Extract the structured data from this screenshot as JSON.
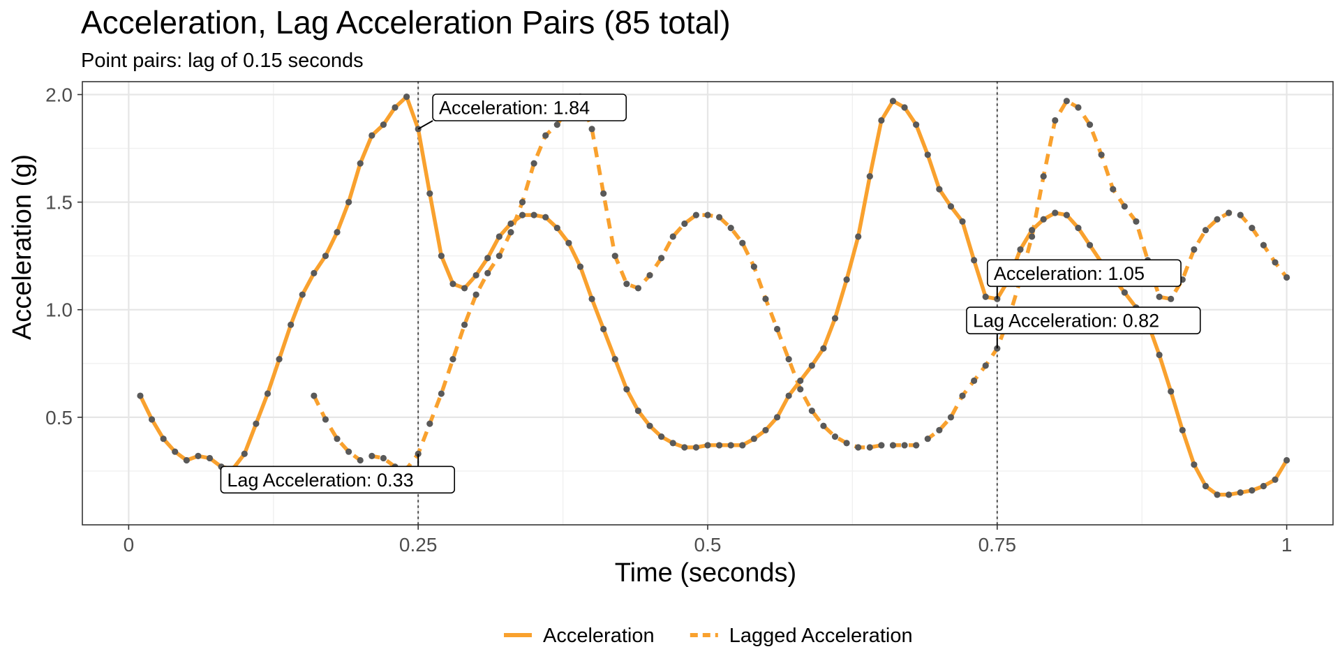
{
  "chart_data": {
    "type": "line",
    "title": "Acceleration, Lag Acceleration Pairs (85 total)",
    "subtitle": "Point pairs: lag of 0.15 seconds",
    "xlabel": "Time (seconds)",
    "ylabel": "Acceleration (g)",
    "xlim": [
      -0.04,
      1.04
    ],
    "ylim": [
      0.0,
      2.06
    ],
    "x_ticks": [
      0,
      0.25,
      0.5,
      0.75,
      1
    ],
    "x_tick_labels": [
      "0",
      "0.25",
      "0.5",
      "0.75",
      "1"
    ],
    "y_ticks": [
      0.5,
      1.0,
      1.5,
      2.0
    ],
    "y_tick_labels": [
      "0.5",
      "1.0",
      "1.5",
      "2.0"
    ],
    "grid": true,
    "legend_position": "bottom",
    "point_color": "#595959",
    "series": [
      {
        "name": "Acceleration",
        "color": "#f9a12e",
        "dash": "solid",
        "x": [
          0.01,
          0.02,
          0.03,
          0.04,
          0.05,
          0.06,
          0.07,
          0.08,
          0.09,
          0.1,
          0.11,
          0.12,
          0.13,
          0.14,
          0.15,
          0.16,
          0.17,
          0.18,
          0.19,
          0.2,
          0.21,
          0.22,
          0.23,
          0.24,
          0.25,
          0.26,
          0.27,
          0.28,
          0.29,
          0.3,
          0.31,
          0.32,
          0.33,
          0.34,
          0.35,
          0.36,
          0.37,
          0.38,
          0.39,
          0.4,
          0.41,
          0.42,
          0.43,
          0.44,
          0.45,
          0.46,
          0.47,
          0.48,
          0.49,
          0.5,
          0.51,
          0.52,
          0.53,
          0.54,
          0.55,
          0.56,
          0.57,
          0.58,
          0.59,
          0.6,
          0.61,
          0.62,
          0.63,
          0.64,
          0.65,
          0.66,
          0.67,
          0.68,
          0.69,
          0.7,
          0.71,
          0.72,
          0.73,
          0.74,
          0.75,
          0.76,
          0.77,
          0.78,
          0.79,
          0.8,
          0.81,
          0.82,
          0.83,
          0.84,
          0.85,
          0.86,
          0.87,
          0.88,
          0.89,
          0.9,
          0.91,
          0.92,
          0.93,
          0.94,
          0.95,
          0.96,
          0.97,
          0.98,
          0.99,
          1.0
        ],
        "y": [
          0.6,
          0.49,
          0.4,
          0.34,
          0.3,
          0.32,
          0.31,
          0.27,
          0.26,
          0.33,
          0.47,
          0.61,
          0.77,
          0.93,
          1.07,
          1.17,
          1.25,
          1.36,
          1.5,
          1.68,
          1.81,
          1.86,
          1.94,
          1.99,
          1.84,
          1.54,
          1.25,
          1.12,
          1.1,
          1.16,
          1.24,
          1.34,
          1.4,
          1.44,
          1.44,
          1.43,
          1.38,
          1.31,
          1.2,
          1.05,
          0.91,
          0.77,
          0.63,
          0.53,
          0.46,
          0.41,
          0.38,
          0.36,
          0.36,
          0.37,
          0.37,
          0.37,
          0.37,
          0.4,
          0.44,
          0.5,
          0.6,
          0.67,
          0.74,
          0.82,
          0.96,
          1.14,
          1.34,
          1.62,
          1.88,
          1.97,
          1.94,
          1.86,
          1.72,
          1.56,
          1.48,
          1.41,
          1.23,
          1.06,
          1.05,
          1.14,
          1.28,
          1.37,
          1.42,
          1.45,
          1.44,
          1.38,
          1.3,
          1.22,
          1.15,
          1.08,
          1.01,
          0.94,
          0.79,
          0.62,
          0.44,
          0.28,
          0.18,
          0.14,
          0.14,
          0.15,
          0.16,
          0.18,
          0.21,
          0.3
        ]
      },
      {
        "name": "Lagged Acceleration",
        "color": "#f9a12e",
        "dash": "dashed",
        "x": [
          0.16,
          0.17,
          0.18,
          0.19,
          0.2,
          0.21,
          0.22,
          0.23,
          0.24,
          0.25,
          0.26,
          0.27,
          0.28,
          0.29,
          0.3,
          0.31,
          0.32,
          0.33,
          0.34,
          0.35,
          0.36,
          0.37,
          0.38,
          0.39,
          0.4,
          0.41,
          0.42,
          0.43,
          0.44,
          0.45,
          0.46,
          0.47,
          0.48,
          0.49,
          0.5,
          0.51,
          0.52,
          0.53,
          0.54,
          0.55,
          0.56,
          0.57,
          0.58,
          0.59,
          0.6,
          0.61,
          0.62,
          0.63,
          0.64,
          0.65,
          0.66,
          0.67,
          0.68,
          0.69,
          0.7,
          0.71,
          0.72,
          0.73,
          0.74,
          0.75,
          0.76,
          0.77,
          0.78,
          0.79,
          0.8,
          0.81,
          0.82,
          0.83,
          0.84,
          0.85,
          0.86,
          0.87,
          0.88,
          0.89,
          0.9,
          0.91,
          0.92,
          0.93,
          0.94,
          0.95,
          0.96,
          0.97,
          0.98,
          0.99,
          1.0
        ],
        "y": [
          0.6,
          0.49,
          0.4,
          0.34,
          0.3,
          0.32,
          0.31,
          0.27,
          0.26,
          0.33,
          0.47,
          0.61,
          0.77,
          0.93,
          1.07,
          1.17,
          1.25,
          1.36,
          1.5,
          1.68,
          1.81,
          1.86,
          1.94,
          1.99,
          1.84,
          1.54,
          1.25,
          1.12,
          1.1,
          1.16,
          1.24,
          1.34,
          1.4,
          1.44,
          1.44,
          1.43,
          1.38,
          1.31,
          1.2,
          1.05,
          0.91,
          0.77,
          0.63,
          0.53,
          0.46,
          0.41,
          0.38,
          0.36,
          0.36,
          0.37,
          0.37,
          0.37,
          0.37,
          0.4,
          0.44,
          0.5,
          0.6,
          0.67,
          0.74,
          0.82,
          0.96,
          1.14,
          1.34,
          1.62,
          1.88,
          1.97,
          1.94,
          1.86,
          1.72,
          1.56,
          1.48,
          1.41,
          1.23,
          1.06,
          1.05,
          1.14,
          1.28,
          1.37,
          1.42,
          1.45,
          1.44,
          1.38,
          1.3,
          1.22,
          1.15
        ]
      }
    ],
    "reference_lines": [
      {
        "axis": "x",
        "value": 0.25,
        "style": "dotted"
      },
      {
        "axis": "x",
        "value": 0.75,
        "style": "dotted"
      }
    ],
    "annotations": [
      {
        "label": "Acceleration: 1.84",
        "point_x": 0.25,
        "point_y": 1.84,
        "label_x": 0.268,
        "label_y": 1.94,
        "anchor": "start"
      },
      {
        "label": "Lag Acceleration: 0.33",
        "point_x": 0.25,
        "point_y": 0.33,
        "label_x": 0.085,
        "label_y": 0.21,
        "anchor": "start"
      },
      {
        "label": "Acceleration: 1.05",
        "point_x": 0.75,
        "point_y": 1.05,
        "label_x": 0.747,
        "label_y": 1.17,
        "anchor": "start"
      },
      {
        "label": "Lag Acceleration: 0.82",
        "point_x": 0.75,
        "point_y": 0.82,
        "label_x": 0.729,
        "label_y": 0.95,
        "anchor": "start"
      }
    ]
  }
}
